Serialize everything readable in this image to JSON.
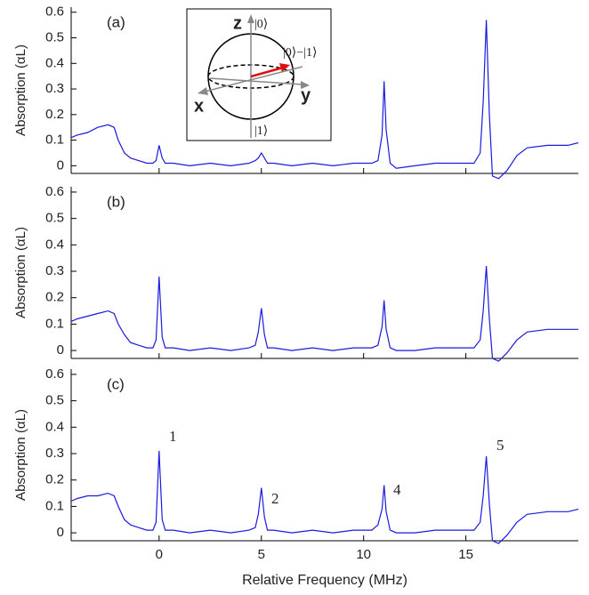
{
  "chart_data": [
    {
      "type": "line",
      "label": "(a)",
      "ylabel": "Absorption (αL)",
      "x": [
        -4.3,
        -4,
        -3.5,
        -3,
        -2.5,
        -2.2,
        -2,
        -1.7,
        -1.4,
        -1,
        -0.6,
        -0.3,
        -0.15,
        0,
        0.15,
        0.3,
        0.7,
        1.5,
        2.5,
        3.5,
        4.4,
        4.7,
        4.85,
        5,
        5.15,
        5.3,
        5.6,
        6.5,
        7.5,
        8.5,
        9.5,
        10.4,
        10.7,
        10.9,
        11,
        11.1,
        11.3,
        11.6,
        12.5,
        13.5,
        14.5,
        15.4,
        15.7,
        15.85,
        16,
        16.15,
        16.3,
        16.6,
        17,
        17.5,
        18,
        19,
        20,
        20.5
      ],
      "series": [
        {
          "color": "#1a1ae0",
          "values": [
            0.11,
            0.12,
            0.13,
            0.15,
            0.16,
            0.15,
            0.1,
            0.05,
            0.03,
            0.02,
            0.01,
            0.01,
            0.02,
            0.08,
            0.03,
            0.01,
            0.01,
            0.0,
            0.01,
            0.0,
            0.01,
            0.02,
            0.03,
            0.05,
            0.03,
            0.01,
            0.01,
            0.0,
            0.01,
            0.0,
            0.01,
            0.01,
            0.02,
            0.12,
            0.33,
            0.14,
            0.01,
            -0.01,
            0.0,
            0.01,
            0.01,
            0.01,
            0.05,
            0.25,
            0.57,
            0.2,
            -0.04,
            -0.05,
            -0.02,
            0.04,
            0.07,
            0.08,
            0.08,
            0.09
          ]
        }
      ],
      "xlim": [
        -4.3,
        20.5
      ],
      "xticks": [
        0,
        5,
        10,
        15
      ],
      "ylim": [
        -0.03,
        0.62
      ],
      "yticks": [
        0,
        0.1,
        0.2,
        0.3,
        0.4,
        0.5,
        0.6
      ],
      "inset": {
        "z": "z",
        "x": "x",
        "y": "y",
        "top": "|0⟩",
        "bottom": "|1⟩",
        "state": "|0⟩−|1⟩"
      }
    },
    {
      "type": "line",
      "label": "(b)",
      "ylabel": "Absorption (αL)",
      "x": [
        -4.3,
        -4,
        -3.5,
        -3,
        -2.5,
        -2.2,
        -2,
        -1.7,
        -1.4,
        -1,
        -0.6,
        -0.3,
        -0.15,
        0,
        0.15,
        0.3,
        0.7,
        1.5,
        2.5,
        3.5,
        4.4,
        4.7,
        4.85,
        5,
        5.15,
        5.3,
        5.6,
        6.5,
        7.5,
        8.5,
        9.5,
        10.4,
        10.7,
        10.9,
        11,
        11.1,
        11.3,
        11.6,
        12.5,
        13.5,
        14.5,
        15.4,
        15.7,
        15.85,
        16,
        16.15,
        16.3,
        16.6,
        17,
        17.5,
        18,
        19,
        20,
        20.5
      ],
      "series": [
        {
          "color": "#1a1ae0",
          "values": [
            0.11,
            0.12,
            0.13,
            0.14,
            0.15,
            0.14,
            0.1,
            0.06,
            0.03,
            0.02,
            0.01,
            0.01,
            0.04,
            0.28,
            0.05,
            0.01,
            0.01,
            0.0,
            0.01,
            0.0,
            0.01,
            0.02,
            0.07,
            0.16,
            0.06,
            0.01,
            0.01,
            0.0,
            0.01,
            0.0,
            0.01,
            0.01,
            0.02,
            0.09,
            0.19,
            0.08,
            0.01,
            0.0,
            0.0,
            0.01,
            0.01,
            0.01,
            0.04,
            0.15,
            0.32,
            0.12,
            -0.03,
            -0.04,
            -0.01,
            0.04,
            0.07,
            0.08,
            0.08,
            0.08
          ]
        }
      ],
      "xlim": [
        -4.3,
        20.5
      ],
      "xticks": [
        0,
        5,
        10,
        15
      ],
      "ylim": [
        -0.03,
        0.62
      ],
      "yticks": [
        0,
        0.1,
        0.2,
        0.3,
        0.4,
        0.5,
        0.6
      ]
    },
    {
      "type": "line",
      "label": "(c)",
      "ylabel": "Absorption (αL)",
      "xlabel": "Relative Frequency (MHz)",
      "x": [
        -4.3,
        -4,
        -3.5,
        -3,
        -2.5,
        -2.2,
        -2,
        -1.7,
        -1.4,
        -1,
        -0.6,
        -0.3,
        -0.15,
        0,
        0.15,
        0.3,
        0.7,
        1.5,
        2.5,
        3.5,
        4.4,
        4.7,
        4.85,
        5,
        5.15,
        5.3,
        5.6,
        6.5,
        7.5,
        8.5,
        9.5,
        10.4,
        10.7,
        10.9,
        11,
        11.1,
        11.3,
        11.6,
        12.5,
        13.5,
        14.5,
        15.4,
        15.7,
        15.85,
        16,
        16.15,
        16.3,
        16.6,
        17,
        17.5,
        18,
        19,
        20,
        20.5
      ],
      "series": [
        {
          "color": "#1a1ae0",
          "values": [
            0.12,
            0.13,
            0.14,
            0.14,
            0.15,
            0.14,
            0.1,
            0.05,
            0.03,
            0.02,
            0.01,
            0.01,
            0.04,
            0.31,
            0.05,
            0.01,
            0.01,
            0.0,
            0.01,
            0.0,
            0.01,
            0.02,
            0.07,
            0.17,
            0.06,
            0.01,
            0.01,
            0.0,
            0.01,
            0.0,
            0.01,
            0.01,
            0.03,
            0.09,
            0.18,
            0.08,
            0.01,
            0.0,
            0.0,
            0.01,
            0.01,
            0.01,
            0.04,
            0.14,
            0.29,
            0.11,
            -0.03,
            -0.04,
            -0.01,
            0.04,
            0.07,
            0.08,
            0.08,
            0.09
          ]
        }
      ],
      "xlim": [
        -4.3,
        20.5
      ],
      "xticks": [
        0,
        5,
        10,
        15
      ],
      "ylim": [
        -0.03,
        0.62
      ],
      "yticks": [
        0,
        0.1,
        0.2,
        0.3,
        0.4,
        0.5,
        0.6
      ],
      "annotations": [
        "1",
        "2",
        "4",
        "5"
      ]
    }
  ]
}
